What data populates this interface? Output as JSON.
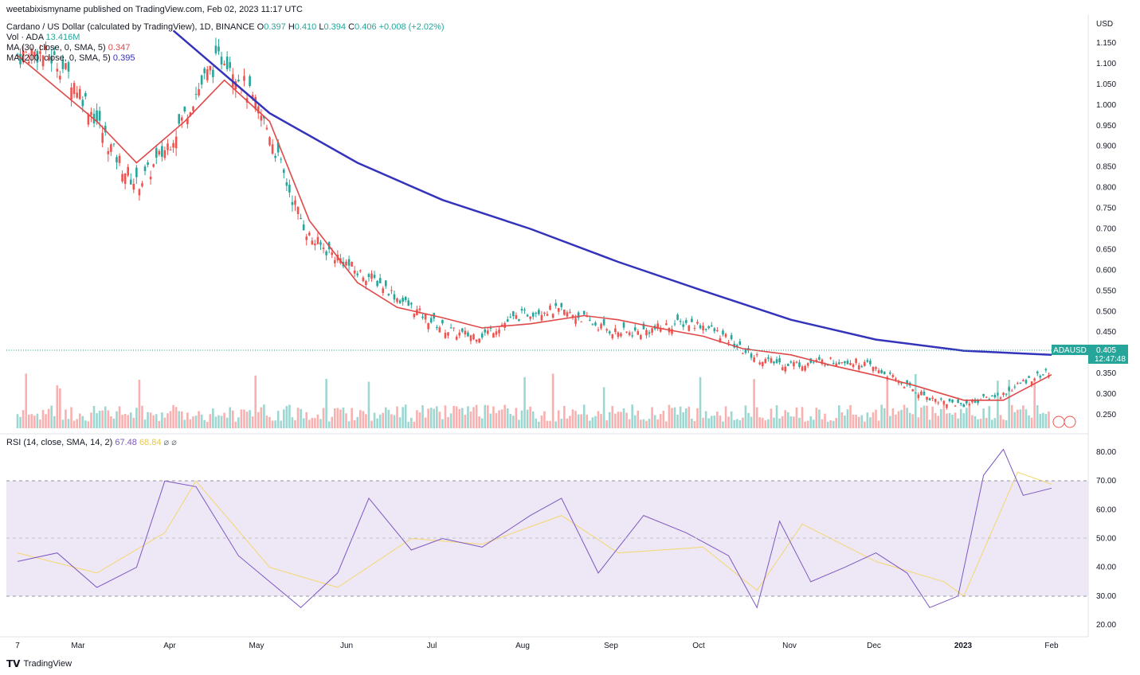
{
  "header": {
    "publisher_line": "weetabixismyname published on TradingView.com, Feb 02, 2023 11:17 UTC",
    "symbol_title": "Cardano / US Dollar (calculated by TradingView), 1D, BINANCE",
    "ohlc": {
      "o_label": "O",
      "o": "0.397",
      "h_label": "H",
      "h": "0.410",
      "l_label": "L",
      "l": "0.394",
      "c_label": "C",
      "c": "0.406",
      "change": "+0.008 (+2.02%)"
    },
    "vol_label": "Vol · ADA",
    "vol_value": "13.416M",
    "ma30_label": "MA (30, close, 0, SMA, 5)",
    "ma30_value": "0.347",
    "ma200_label": "MA (200, close, 0, SMA, 5)",
    "ma200_value": "0.395",
    "rsi_label": "RSI (14, close, SMA, 14, 2)",
    "rsi_value": "67.48",
    "rsi_ma_value": "68.84"
  },
  "price_axis": {
    "currency": "USD",
    "ticks": [
      "1.150",
      "1.100",
      "1.050",
      "1.000",
      "0.950",
      "0.900",
      "0.850",
      "0.800",
      "0.750",
      "0.700",
      "0.650",
      "0.600",
      "0.550",
      "0.500",
      "0.450",
      "0.350",
      "0.300",
      "0.250"
    ],
    "last_symbol": "ADAUSD",
    "last_price": "0.405",
    "countdown": "12:47:48"
  },
  "rsi_axis": {
    "ticks": [
      "80.00",
      "70.00",
      "60.00",
      "50.00",
      "40.00",
      "30.00",
      "20.00"
    ]
  },
  "time_axis": {
    "labels": [
      "7",
      "Mar",
      "Apr",
      "May",
      "Jun",
      "Jul",
      "Aug",
      "Sep",
      "Oct",
      "Nov",
      "Dec",
      "2023",
      "Feb"
    ]
  },
  "footer": {
    "brand": "TradingView"
  },
  "colors": {
    "up": "#26a69a",
    "down": "#ef5350",
    "ma30": "#e04848",
    "ma200": "#3333bb",
    "rsi": "#7e57c2",
    "rsi_ma": "#f5d76e",
    "rsi_band": "#ede7f6"
  },
  "chart_data": [
    {
      "type": "line",
      "title": "Cardano / US Dollar (calculated by TradingView), 1D, BINANCE",
      "ylabel": "USD",
      "ylim": [
        0.2,
        1.2
      ],
      "series": [
        {
          "name": "MA (200, close, 0, SMA, 5)",
          "x": [
            "2022-03-28",
            "2022-05-01",
            "2022-06-01",
            "2022-07-01",
            "2022-08-01",
            "2022-09-01",
            "2022-10-01",
            "2022-11-01",
            "2022-12-01",
            "2023-01-01",
            "2023-02-01"
          ],
          "values": [
            1.18,
            0.98,
            0.86,
            0.77,
            0.7,
            0.62,
            0.55,
            0.48,
            0.432,
            0.405,
            0.395
          ]
        },
        {
          "name": "MA (30, close, 0, SMA, 5)",
          "x": [
            "2022-02-01",
            "2022-03-01",
            "2022-03-15",
            "2022-04-01",
            "2022-04-15",
            "2022-05-01",
            "2022-05-15",
            "2022-06-01",
            "2022-06-15",
            "2022-07-01",
            "2022-07-15",
            "2022-08-01",
            "2022-08-20",
            "2022-09-01",
            "2022-09-15",
            "2022-10-01",
            "2022-10-15",
            "2022-11-01",
            "2022-11-15",
            "2022-12-01",
            "2022-12-15",
            "2023-01-01",
            "2023-01-15",
            "2023-02-01"
          ],
          "values": [
            1.12,
            0.96,
            0.86,
            0.96,
            1.06,
            0.96,
            0.72,
            0.57,
            0.51,
            0.485,
            0.46,
            0.47,
            0.49,
            0.48,
            0.46,
            0.44,
            0.41,
            0.395,
            0.37,
            0.345,
            0.32,
            0.285,
            0.285,
            0.347
          ]
        }
      ]
    },
    {
      "type": "line",
      "title": "RSI (14, close, SMA, 14, 2)",
      "ylim": [
        15,
        85
      ],
      "overbought": 70,
      "oversold": 30,
      "series": [
        {
          "name": "RSI",
          "x": [
            "2022-02-01",
            "2022-02-15",
            "2022-03-01",
            "2022-03-15",
            "2022-03-25",
            "2022-04-05",
            "2022-04-20",
            "2022-05-01",
            "2022-05-12",
            "2022-05-25",
            "2022-06-05",
            "2022-06-20",
            "2022-07-01",
            "2022-07-15",
            "2022-08-01",
            "2022-08-12",
            "2022-08-25",
            "2022-09-10",
            "2022-09-25",
            "2022-10-10",
            "2022-10-20",
            "2022-10-28",
            "2022-11-08",
            "2022-11-20",
            "2022-12-01",
            "2022-12-12",
            "2022-12-20",
            "2022-12-30",
            "2023-01-08",
            "2023-01-15",
            "2023-01-22",
            "2023-02-01"
          ],
          "values": [
            42,
            45,
            33,
            40,
            70,
            68,
            44,
            35,
            26,
            38,
            64,
            46,
            50,
            47,
            58,
            64,
            38,
            58,
            52,
            44,
            26,
            56,
            35,
            40,
            45,
            38,
            26,
            30,
            72,
            81,
            65,
            67.48
          ]
        },
        {
          "name": "RSI MA",
          "x": [
            "2022-02-01",
            "2022-03-01",
            "2022-03-25",
            "2022-04-05",
            "2022-05-01",
            "2022-05-25",
            "2022-06-20",
            "2022-07-15",
            "2022-08-12",
            "2022-09-01",
            "2022-10-01",
            "2022-10-20",
            "2022-11-05",
            "2022-12-01",
            "2022-12-25",
            "2023-01-01",
            "2023-01-20",
            "2023-02-01"
          ],
          "values": [
            45,
            38,
            52,
            70,
            40,
            33,
            50,
            48,
            58,
            45,
            47,
            32,
            55,
            42,
            35,
            30,
            73,
            68.84
          ]
        }
      ]
    }
  ]
}
